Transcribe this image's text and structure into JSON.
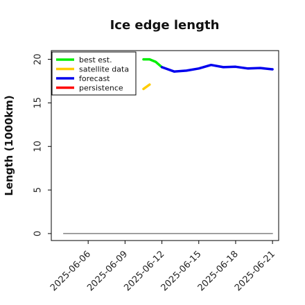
{
  "chart_data": {
    "type": "line",
    "title": "Ice edge length",
    "ylabel": "Length (1000km)",
    "xlabel": "",
    "x_axis": "date",
    "xlim": [
      "2025-06-03",
      "2025-06-21T12:00"
    ],
    "ylim": [
      -0.8,
      21
    ],
    "x_ticks": [
      "2025-06-06",
      "2025-06-09",
      "2025-06-12",
      "2025-06-15",
      "2025-06-18",
      "2025-06-21"
    ],
    "x_tick_colors": [
      "#000000",
      "#000000",
      "#228B22",
      "#000000",
      "#000000",
      "#000000"
    ],
    "y_ticks": [
      0,
      5,
      10,
      15,
      20
    ],
    "grid": false,
    "legend_position": "top-left",
    "series": [
      {
        "name": "best est.",
        "color": "#00ee00",
        "x": [
          "2025-06-10T12:00",
          "2025-06-11",
          "2025-06-11T12:00",
          "2025-06-12"
        ],
        "y": [
          20.0,
          20.0,
          19.7,
          19.1
        ]
      },
      {
        "name": "satellite data",
        "color": "#ffcc00",
        "x": [
          "2025-06-10T12:00",
          "2025-06-11"
        ],
        "y": [
          16.6,
          17.1
        ]
      },
      {
        "name": "forecast",
        "color": "#0000ee",
        "x": [
          "2025-06-12",
          "2025-06-13",
          "2025-06-14",
          "2025-06-15",
          "2025-06-16",
          "2025-06-17",
          "2025-06-18",
          "2025-06-19",
          "2025-06-20",
          "2025-06-21"
        ],
        "y": [
          19.1,
          18.6,
          18.7,
          18.95,
          19.35,
          19.1,
          19.15,
          18.95,
          19.0,
          18.85
        ]
      },
      {
        "name": "persistence",
        "color": "#ff0000",
        "x": [],
        "y": []
      },
      {
        "name": "",
        "color": "#808080",
        "x": [
          "2025-06-04",
          "2025-06-21"
        ],
        "y": [
          0,
          0
        ]
      }
    ]
  }
}
